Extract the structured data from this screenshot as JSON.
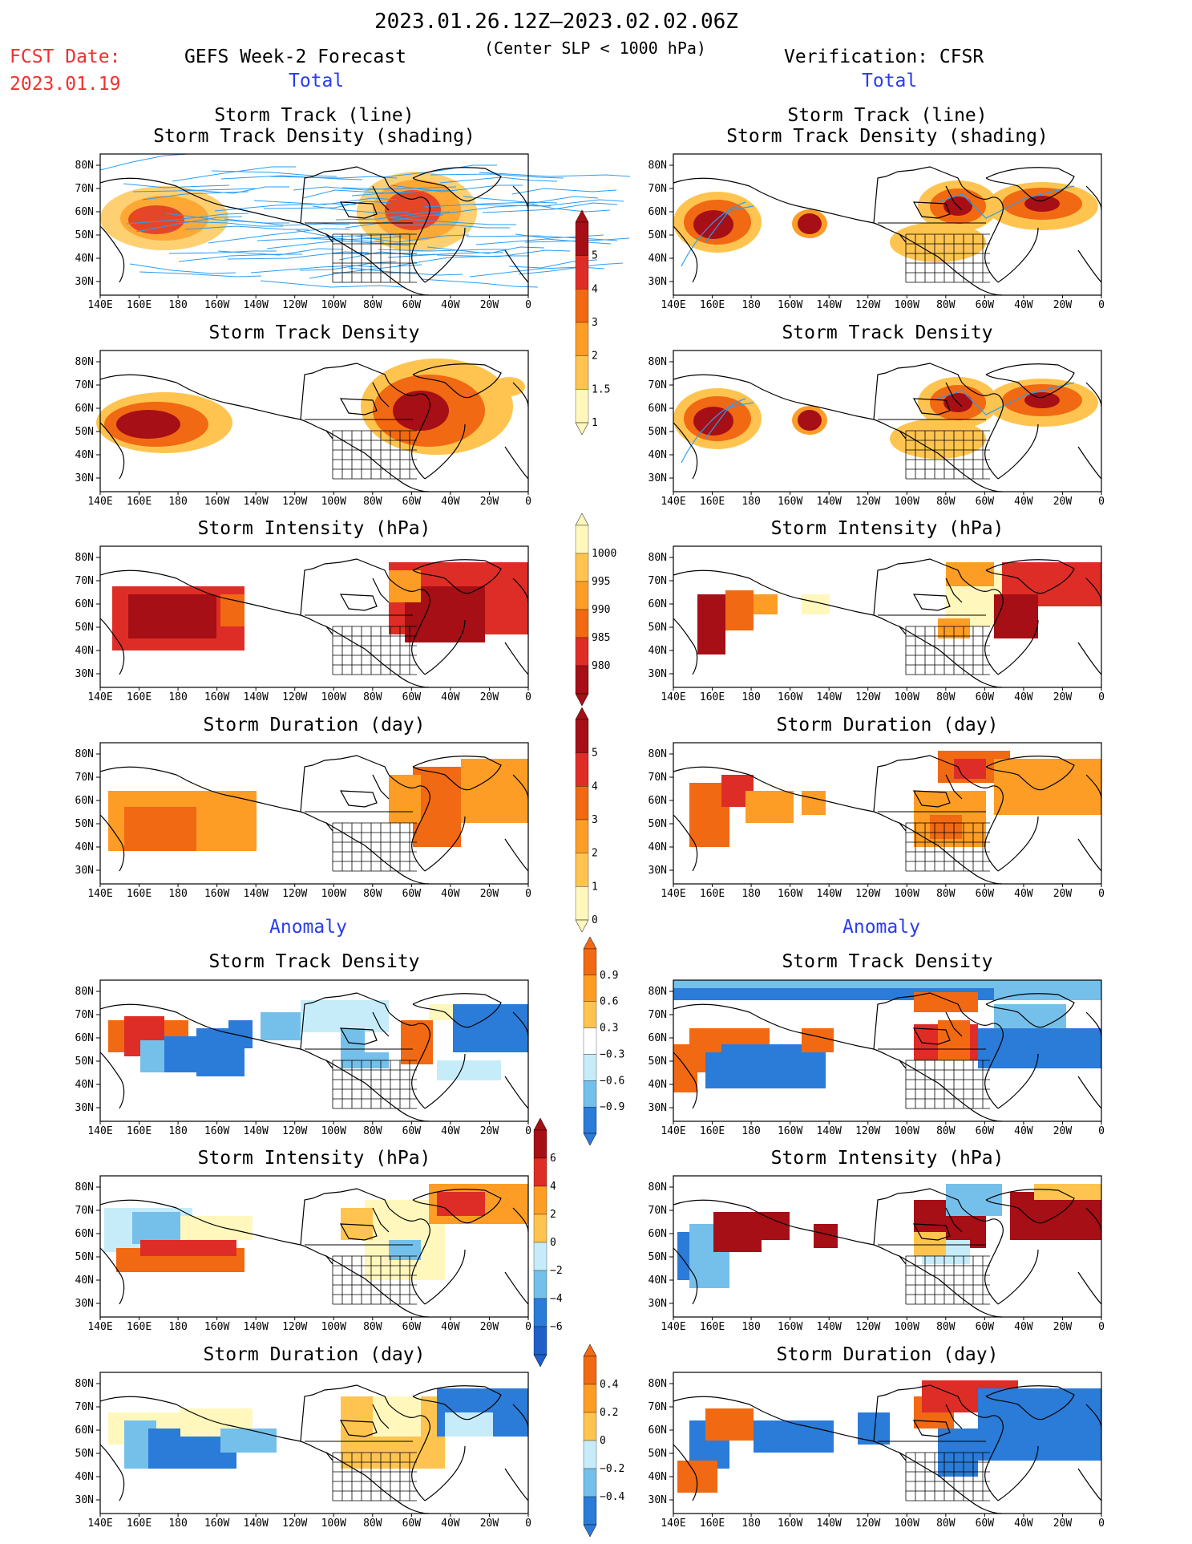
{
  "header": {
    "period": "2023.01.26.12Z–2023.02.02.06Z",
    "criterion": "(Center SLP < 1000 hPa)",
    "fcst_label": "FCST Date:",
    "fcst_date": "2023.01.19",
    "left_title": "GEFS Week-2 Forecast",
    "right_title": "Verification: CFSR",
    "total_label": "Total",
    "anomaly_label": "Anomaly"
  },
  "panel_titles": {
    "track_line": "Storm Track (line)",
    "track_shading": "Storm Track Density (shading)",
    "density": "Storm Track Density",
    "intensity": "Storm Intensity (hPa)",
    "duration": "Storm Duration (day)"
  },
  "axes": {
    "lat_labels": [
      "80N",
      "70N",
      "60N",
      "50N",
      "40N",
      "30N"
    ],
    "lon_labels": [
      "140E",
      "160E",
      "180",
      "160W",
      "140W",
      "120W",
      "100W",
      "80W",
      "60W",
      "40W",
      "20W",
      "0"
    ]
  },
  "colorbars": {
    "density": [
      "5",
      "4",
      "3",
      "2",
      "1.5",
      "1"
    ],
    "intensity": [
      "1000",
      "995",
      "990",
      "985",
      "980"
    ],
    "duration": [
      "5",
      "4",
      "3",
      "2",
      "1",
      "0"
    ],
    "density_anom": [
      "0.9",
      "0.6",
      "0.3",
      "−0.3",
      "−0.6",
      "−0.9"
    ],
    "intensity_anom": [
      "6",
      "4",
      "2",
      "0",
      "−2",
      "−4",
      "−6"
    ],
    "duration_anom": [
      "0.4",
      "0.2",
      "0",
      "−0.2",
      "−0.4"
    ]
  },
  "colors": {
    "dark_red": "#a50f15",
    "red": "#de2d26",
    "orange_red": "#f16913",
    "orange": "#fd9d25",
    "light_orange": "#fec44f",
    "pale_yellow": "#fff7bc",
    "pale_blue": "#c6ecfa",
    "light_blue": "#74c0ea",
    "blue": "#2b7bd8",
    "dark_blue": "#1f5fc8",
    "track_line": "#2a9df4",
    "map_line": "#000000"
  }
}
